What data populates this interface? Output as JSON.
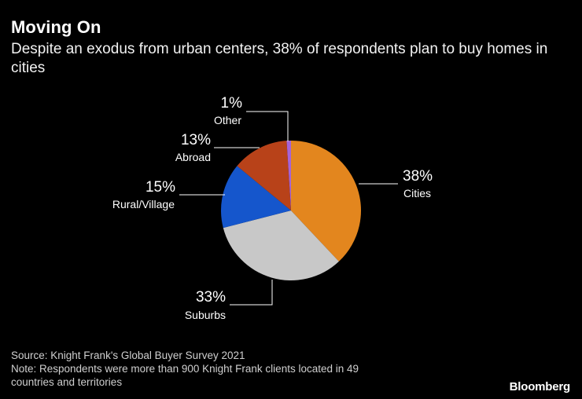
{
  "header": {
    "title": "Moving On",
    "subtitle": "Despite an exodus from urban centers, 38% of respondents plan to buy homes in cities"
  },
  "chart_data": {
    "type": "pie",
    "title": "Moving On",
    "subtitle": "Despite an exodus from urban centers, 38% of respondents plan to buy homes in cities",
    "slices": [
      {
        "label": "Cities",
        "value": 38,
        "value_label": "38%",
        "color": "#e3861e"
      },
      {
        "label": "Suburbs",
        "value": 33,
        "value_label": "33%",
        "color": "#c8c8c8"
      },
      {
        "label": "Rural/Village",
        "value": 15,
        "value_label": "15%",
        "color": "#1556cc"
      },
      {
        "label": "Abroad",
        "value": 13,
        "value_label": "13%",
        "color": "#b84219"
      },
      {
        "label": "Other",
        "value": 1,
        "value_label": "1%",
        "color": "#a663d6"
      }
    ],
    "start": "12 o'clock",
    "direction": "clockwise"
  },
  "footer": {
    "source": "Source: Knight Frank's Global Buyer Survey 2021",
    "note_line1": "Note: Respondents were more than 900 Knight Frank clients located in 49",
    "note_line2": "countries and territories"
  },
  "brand": {
    "name": "Bloomberg"
  }
}
